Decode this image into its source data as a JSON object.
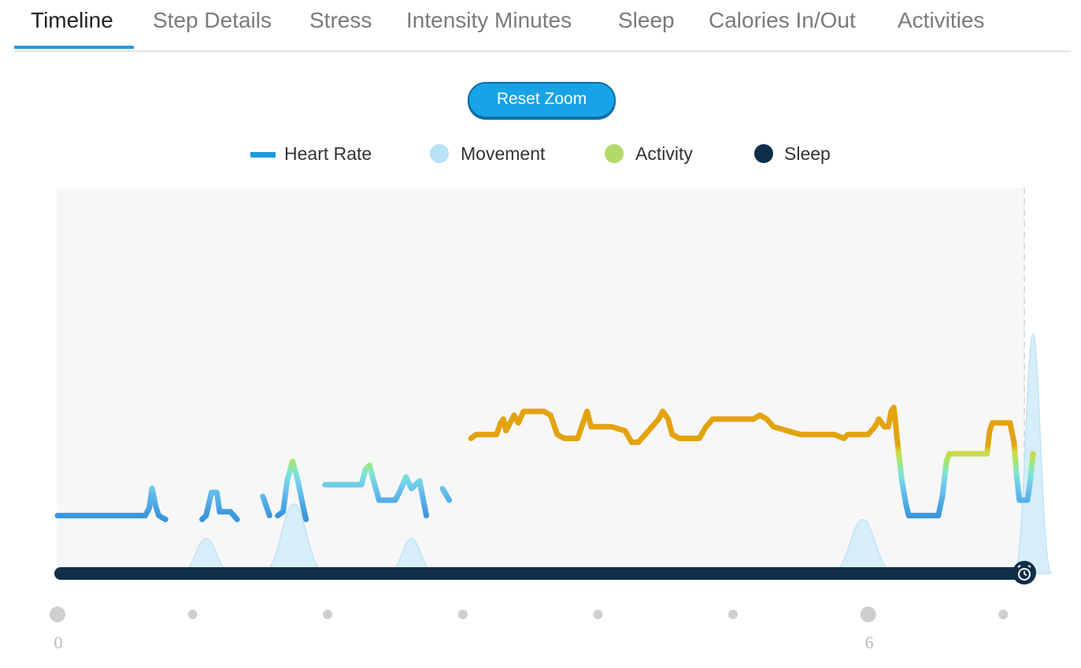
{
  "tabs": [
    {
      "label": "Timeline",
      "active": true
    },
    {
      "label": "Step Details"
    },
    {
      "label": "Stress"
    },
    {
      "label": "Intensity Minutes"
    },
    {
      "label": "Sleep"
    },
    {
      "label": "Calories In/Out"
    },
    {
      "label": "Activities"
    }
  ],
  "reset_zoom_label": "Reset Zoom",
  "legend": [
    {
      "label": "Heart Rate",
      "color": "#1e9be0",
      "swatch": "line"
    },
    {
      "label": "Movement",
      "color": "#b8e2f6",
      "swatch": "dot"
    },
    {
      "label": "Activity",
      "color": "#b3d96b",
      "swatch": "dot"
    },
    {
      "label": "Sleep",
      "color": "#0f2f49",
      "swatch": "dot"
    }
  ],
  "colors": {
    "heart_rate_rest": "#3b95dd",
    "heart_rate_mid": "#7be5d8",
    "heart_rate_active": "#a8e66a",
    "heart_rate_peak": "#e3a30f",
    "movement": "#d6eefa",
    "sleep_bar": "#0f2f49",
    "plot_bg": "#f7f7f7"
  },
  "icons": {
    "sleep_end": "alarm-clock-icon"
  },
  "chart_data": {
    "type": "line",
    "xlim": [
      0,
      7.2
    ],
    "ylim": [
      0,
      100
    ],
    "x_tick_labels": [
      {
        "x": 0,
        "label": "0"
      },
      {
        "x": 6,
        "label": "6"
      }
    ],
    "x_tick_dots": [
      0,
      1,
      2,
      3,
      4,
      5,
      6,
      7
    ],
    "heart_rate_segments": [
      [
        [
          0,
          15
        ],
        [
          0.65,
          15
        ],
        [
          0.68,
          17
        ],
        [
          0.7,
          22
        ],
        [
          0.73,
          17
        ],
        [
          0.75,
          15
        ],
        [
          0.8,
          14
        ]
      ],
      [
        [
          1.07,
          14
        ],
        [
          1.1,
          15
        ],
        [
          1.12,
          18
        ],
        [
          1.14,
          21
        ],
        [
          1.18,
          21
        ],
        [
          1.2,
          16
        ],
        [
          1.28,
          16
        ],
        [
          1.33,
          14
        ]
      ],
      [
        [
          1.52,
          20
        ],
        [
          1.57,
          15
        ]
      ],
      [
        [
          1.63,
          15
        ],
        [
          1.67,
          16
        ],
        [
          1.7,
          24
        ],
        [
          1.74,
          29
        ],
        [
          1.78,
          24
        ],
        [
          1.82,
          17
        ],
        [
          1.84,
          14
        ]
      ],
      [
        [
          1.98,
          23
        ],
        [
          2.25,
          23
        ],
        [
          2.28,
          27
        ],
        [
          2.31,
          28
        ],
        [
          2.34,
          24
        ],
        [
          2.38,
          19
        ],
        [
          2.5,
          19
        ],
        [
          2.53,
          21
        ],
        [
          2.58,
          25
        ],
        [
          2.62,
          22
        ],
        [
          2.68,
          24
        ],
        [
          2.73,
          15
        ]
      ],
      [
        [
          2.85,
          22
        ],
        [
          2.9,
          19
        ]
      ],
      [
        [
          3.06,
          35
        ],
        [
          3.1,
          36
        ],
        [
          3.25,
          36
        ],
        [
          3.28,
          39
        ],
        [
          3.3,
          40
        ],
        [
          3.32,
          37
        ],
        [
          3.35,
          39
        ],
        [
          3.38,
          41
        ],
        [
          3.41,
          39
        ],
        [
          3.45,
          42
        ],
        [
          3.5,
          42
        ],
        [
          3.6,
          42
        ],
        [
          3.65,
          41
        ],
        [
          3.7,
          36
        ],
        [
          3.75,
          35
        ],
        [
          3.85,
          35
        ],
        [
          3.9,
          40
        ],
        [
          3.92,
          42
        ],
        [
          3.95,
          38
        ],
        [
          4.1,
          38
        ],
        [
          4.2,
          37
        ],
        [
          4.25,
          34
        ],
        [
          4.3,
          34
        ],
        [
          4.35,
          36
        ],
        [
          4.4,
          38
        ],
        [
          4.45,
          40
        ],
        [
          4.48,
          42
        ],
        [
          4.52,
          40
        ],
        [
          4.55,
          36
        ],
        [
          4.6,
          35
        ],
        [
          4.75,
          35
        ],
        [
          4.8,
          38
        ],
        [
          4.85,
          40
        ],
        [
          5.0,
          40
        ],
        [
          5.15,
          40
        ],
        [
          5.2,
          41
        ],
        [
          5.25,
          40
        ],
        [
          5.3,
          38
        ],
        [
          5.4,
          37
        ],
        [
          5.5,
          36
        ],
        [
          5.65,
          36
        ],
        [
          5.75,
          36
        ],
        [
          5.82,
          35
        ],
        [
          5.85,
          36
        ],
        [
          6.0,
          36
        ],
        [
          6.05,
          38
        ],
        [
          6.08,
          40
        ],
        [
          6.12,
          38
        ],
        [
          6.15,
          38
        ],
        [
          6.17,
          42
        ],
        [
          6.19,
          43
        ],
        [
          6.2,
          40
        ],
        [
          6.22,
          33
        ],
        [
          6.25,
          24
        ],
        [
          6.28,
          18
        ],
        [
          6.3,
          15
        ],
        [
          6.35,
          15
        ],
        [
          6.52,
          15
        ],
        [
          6.55,
          20
        ],
        [
          6.58,
          29
        ],
        [
          6.6,
          31
        ],
        [
          6.88,
          31
        ],
        [
          6.9,
          37
        ],
        [
          6.92,
          39
        ],
        [
          7.05,
          39
        ],
        [
          7.08,
          34
        ],
        [
          7.1,
          25
        ],
        [
          7.12,
          19
        ],
        [
          7.14,
          19
        ],
        [
          7.18,
          19
        ],
        [
          7.2,
          24
        ],
        [
          7.22,
          31
        ]
      ]
    ],
    "movement_peaks": [
      {
        "x": 1.1,
        "height": 9,
        "width": 0.2
      },
      {
        "x": 1.75,
        "height": 18,
        "width": 0.24
      },
      {
        "x": 2.62,
        "height": 9,
        "width": 0.18
      },
      {
        "x": 5.96,
        "height": 14,
        "width": 0.24
      },
      {
        "x": 7.22,
        "height": 62,
        "width": 0.14
      }
    ],
    "sleep_span": [
      0,
      7.2
    ]
  }
}
